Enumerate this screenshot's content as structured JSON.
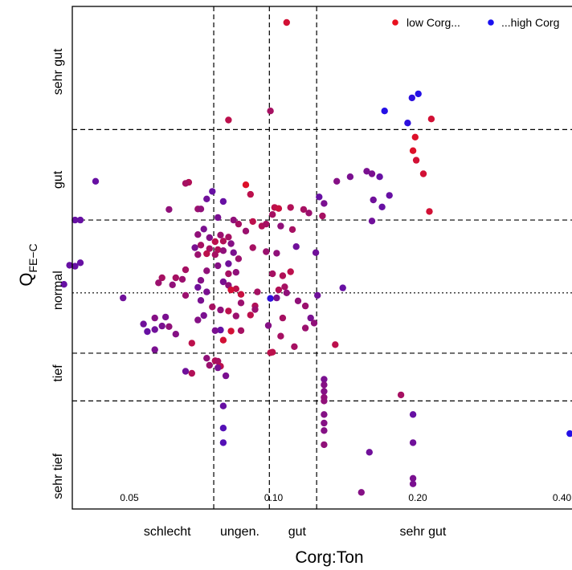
{
  "chart_data": {
    "type": "scatter",
    "xlabel": "Corg:Ton",
    "ylabel_main": "Q",
    "ylabel_sub": "FE−C",
    "x_scale": "log",
    "xlim": [
      0.038,
      0.45
    ],
    "ylim": [
      0,
      1
    ],
    "x_ticks": [
      {
        "value": 0.05,
        "label": "0.05"
      },
      {
        "value": 0.1,
        "label": "0.10"
      },
      {
        "value": 0.2,
        "label": "0.20"
      },
      {
        "value": 0.4,
        "label": "0.40"
      }
    ],
    "x_class_labels": [
      {
        "label": "schlecht",
        "value": 0.06
      },
      {
        "label": "ungen.",
        "value": 0.085
      },
      {
        "label": "gut",
        "value": 0.112
      },
      {
        "label": "sehr gut",
        "value": 0.205
      }
    ],
    "x_thresholds_dashed": [
      0.075,
      0.098,
      0.123
    ],
    "y_class_labels": [
      {
        "label": "sehr gut",
        "value": 0.87
      },
      {
        "label": "gut",
        "value": 0.655
      },
      {
        "label": "normal",
        "value": 0.435
      },
      {
        "label": "tief",
        "value": 0.27
      },
      {
        "label": "sehr tief",
        "value": 0.065
      }
    ],
    "y_thresholds_dashed": [
      0.755,
      0.575,
      0.31,
      0.215
    ],
    "y_threshold_dotted": 0.43,
    "legend": {
      "position": "top-right",
      "entries": [
        {
          "label": "low Corg...",
          "color": "#e8101e"
        },
        {
          "label": "...high Corg",
          "color": "#1a10f0"
        }
      ]
    },
    "color_gradient": [
      "#e8101e",
      "#7a1090",
      "#1a10f0"
    ],
    "points": [
      {
        "x": 0.1065,
        "y": 0.968,
        "c": 0.1
      },
      {
        "x": 0.0985,
        "y": 0.792,
        "c": 0.3
      },
      {
        "x": 0.0805,
        "y": 0.774,
        "c": 0.2
      },
      {
        "x": 0.2005,
        "y": 0.826,
        "c": 0.95
      },
      {
        "x": 0.1945,
        "y": 0.818,
        "c": 0.9
      },
      {
        "x": 0.1705,
        "y": 0.792,
        "c": 0.95
      },
      {
        "x": 0.2135,
        "y": 0.776,
        "c": 0.1
      },
      {
        "x": 0.1905,
        "y": 0.768,
        "c": 0.9
      },
      {
        "x": 0.1975,
        "y": 0.74,
        "c": 0.05
      },
      {
        "x": 0.1955,
        "y": 0.713,
        "c": 0.05
      },
      {
        "x": 0.1985,
        "y": 0.694,
        "c": 0.1
      },
      {
        "x": 0.2055,
        "y": 0.667,
        "c": 0.1
      },
      {
        "x": 0.2115,
        "y": 0.592,
        "c": 0.1
      },
      {
        "x": 0.1565,
        "y": 0.672,
        "c": 0.5
      },
      {
        "x": 0.1605,
        "y": 0.667,
        "c": 0.5
      },
      {
        "x": 0.1665,
        "y": 0.661,
        "c": 0.6
      },
      {
        "x": 0.1445,
        "y": 0.661,
        "c": 0.5
      },
      {
        "x": 0.1355,
        "y": 0.652,
        "c": 0.45
      },
      {
        "x": 0.1745,
        "y": 0.624,
        "c": 0.6
      },
      {
        "x": 0.1615,
        "y": 0.615,
        "c": 0.55
      },
      {
        "x": 0.1685,
        "y": 0.601,
        "c": 0.6
      },
      {
        "x": 0.1245,
        "y": 0.621,
        "c": 0.6
      },
      {
        "x": 0.1275,
        "y": 0.608,
        "c": 0.5
      },
      {
        "x": 0.1605,
        "y": 0.573,
        "c": 0.55
      },
      {
        "x": 0.0425,
        "y": 0.652,
        "c": 0.6
      },
      {
        "x": 0.0665,
        "y": 0.65,
        "c": 0.25
      },
      {
        "x": 0.0655,
        "y": 0.648,
        "c": 0.3
      },
      {
        "x": 0.0745,
        "y": 0.632,
        "c": 0.6
      },
      {
        "x": 0.0725,
        "y": 0.617,
        "c": 0.55
      },
      {
        "x": 0.0785,
        "y": 0.612,
        "c": 0.6
      },
      {
        "x": 0.0605,
        "y": 0.596,
        "c": 0.4
      },
      {
        "x": 0.0695,
        "y": 0.597,
        "c": 0.35
      },
      {
        "x": 0.0705,
        "y": 0.597,
        "c": 0.4
      },
      {
        "x": 0.0875,
        "y": 0.645,
        "c": 0.05
      },
      {
        "x": 0.0895,
        "y": 0.626,
        "c": 0.2
      },
      {
        "x": 0.1005,
        "y": 0.6,
        "c": 0.2
      },
      {
        "x": 0.1025,
        "y": 0.598,
        "c": 0.15
      },
      {
        "x": 0.1085,
        "y": 0.6,
        "c": 0.25
      },
      {
        "x": 0.1155,
        "y": 0.596,
        "c": 0.3
      },
      {
        "x": 0.1185,
        "y": 0.589,
        "c": 0.35
      },
      {
        "x": 0.1265,
        "y": 0.583,
        "c": 0.3
      },
      {
        "x": 0.0995,
        "y": 0.586,
        "c": 0.3
      },
      {
        "x": 0.0395,
        "y": 0.575,
        "c": 0.6
      },
      {
        "x": 0.0385,
        "y": 0.575,
        "c": 0.6
      },
      {
        "x": 0.0765,
        "y": 0.58,
        "c": 0.5
      },
      {
        "x": 0.0825,
        "y": 0.575,
        "c": 0.4
      },
      {
        "x": 0.0845,
        "y": 0.567,
        "c": 0.3
      },
      {
        "x": 0.0905,
        "y": 0.572,
        "c": 0.2
      },
      {
        "x": 0.0945,
        "y": 0.563,
        "c": 0.25
      },
      {
        "x": 0.0965,
        "y": 0.567,
        "c": 0.3
      },
      {
        "x": 0.1035,
        "y": 0.563,
        "c": 0.4
      },
      {
        "x": 0.1095,
        "y": 0.556,
        "c": 0.3
      },
      {
        "x": 0.0875,
        "y": 0.553,
        "c": 0.35
      },
      {
        "x": 0.0715,
        "y": 0.557,
        "c": 0.5
      },
      {
        "x": 0.0695,
        "y": 0.546,
        "c": 0.4
      },
      {
        "x": 0.0735,
        "y": 0.54,
        "c": 0.45
      },
      {
        "x": 0.0775,
        "y": 0.545,
        "c": 0.35
      },
      {
        "x": 0.0805,
        "y": 0.541,
        "c": 0.3
      },
      {
        "x": 0.0755,
        "y": 0.532,
        "c": 0.2
      },
      {
        "x": 0.0785,
        "y": 0.533,
        "c": 0.25
      },
      {
        "x": 0.0815,
        "y": 0.528,
        "c": 0.45
      },
      {
        "x": 0.0705,
        "y": 0.525,
        "c": 0.3
      },
      {
        "x": 0.0735,
        "y": 0.518,
        "c": 0.3
      },
      {
        "x": 0.0765,
        "y": 0.516,
        "c": 0.25
      },
      {
        "x": 0.0685,
        "y": 0.52,
        "c": 0.5
      },
      {
        "x": 0.0725,
        "y": 0.508,
        "c": 0.2
      },
      {
        "x": 0.0755,
        "y": 0.506,
        "c": 0.3
      },
      {
        "x": 0.0785,
        "y": 0.514,
        "c": 0.4
      },
      {
        "x": 0.0695,
        "y": 0.506,
        "c": 0.35
      },
      {
        "x": 0.0825,
        "y": 0.51,
        "c": 0.5
      },
      {
        "x": 0.0845,
        "y": 0.498,
        "c": 0.35
      },
      {
        "x": 0.0905,
        "y": 0.52,
        "c": 0.3
      },
      {
        "x": 0.0965,
        "y": 0.512,
        "c": 0.35
      },
      {
        "x": 0.1015,
        "y": 0.509,
        "c": 0.4
      },
      {
        "x": 0.1115,
        "y": 0.522,
        "c": 0.55
      },
      {
        "x": 0.1225,
        "y": 0.51,
        "c": 0.55
      },
      {
        "x": 0.0805,
        "y": 0.488,
        "c": 0.55
      },
      {
        "x": 0.0765,
        "y": 0.484,
        "c": 0.45
      },
      {
        "x": 0.0655,
        "y": 0.476,
        "c": 0.3
      },
      {
        "x": 0.0725,
        "y": 0.474,
        "c": 0.4
      },
      {
        "x": 0.0805,
        "y": 0.468,
        "c": 0.3
      },
      {
        "x": 0.0835,
        "y": 0.471,
        "c": 0.4
      },
      {
        "x": 0.0995,
        "y": 0.468,
        "c": 0.3
      },
      {
        "x": 0.1045,
        "y": 0.464,
        "c": 0.25
      },
      {
        "x": 0.1085,
        "y": 0.472,
        "c": 0.2
      },
      {
        "x": 0.0625,
        "y": 0.46,
        "c": 0.3
      },
      {
        "x": 0.0645,
        "y": 0.457,
        "c": 0.35
      },
      {
        "x": 0.0705,
        "y": 0.455,
        "c": 0.45
      },
      {
        "x": 0.0785,
        "y": 0.452,
        "c": 0.5
      },
      {
        "x": 0.0615,
        "y": 0.446,
        "c": 0.4
      },
      {
        "x": 0.0585,
        "y": 0.46,
        "c": 0.3
      },
      {
        "x": 0.0395,
        "y": 0.49,
        "c": 0.6
      },
      {
        "x": 0.0385,
        "y": 0.483,
        "c": 0.6
      },
      {
        "x": 0.0375,
        "y": 0.485,
        "c": 0.6
      },
      {
        "x": 0.0365,
        "y": 0.447,
        "c": 0.6
      },
      {
        "x": 0.0575,
        "y": 0.45,
        "c": 0.35
      },
      {
        "x": 0.0805,
        "y": 0.445,
        "c": 0.4
      },
      {
        "x": 0.0835,
        "y": 0.438,
        "c": 0.2
      },
      {
        "x": 0.0815,
        "y": 0.436,
        "c": 0.1
      },
      {
        "x": 0.0855,
        "y": 0.427,
        "c": 0.15
      },
      {
        "x": 0.0925,
        "y": 0.432,
        "c": 0.3
      },
      {
        "x": 0.1025,
        "y": 0.436,
        "c": 0.25
      },
      {
        "x": 0.1055,
        "y": 0.442,
        "c": 0.3
      },
      {
        "x": 0.1065,
        "y": 0.43,
        "c": 0.4
      },
      {
        "x": 0.1395,
        "y": 0.44,
        "c": 0.6
      },
      {
        "x": 0.0695,
        "y": 0.441,
        "c": 0.55
      },
      {
        "x": 0.0725,
        "y": 0.432,
        "c": 0.5
      },
      {
        "x": 0.0655,
        "y": 0.425,
        "c": 0.35
      },
      {
        "x": 0.0705,
        "y": 0.415,
        "c": 0.5
      },
      {
        "x": 0.0985,
        "y": 0.419,
        "c": 0.9
      },
      {
        "x": 0.1015,
        "y": 0.42,
        "c": 0.5
      },
      {
        "x": 0.1235,
        "y": 0.425,
        "c": 0.55
      },
      {
        "x": 0.0855,
        "y": 0.41,
        "c": 0.35
      },
      {
        "x": 0.0915,
        "y": 0.404,
        "c": 0.25
      },
      {
        "x": 0.0485,
        "y": 0.42,
        "c": 0.55
      },
      {
        "x": 0.0745,
        "y": 0.402,
        "c": 0.3
      },
      {
        "x": 0.0775,
        "y": 0.396,
        "c": 0.4
      },
      {
        "x": 0.0805,
        "y": 0.394,
        "c": 0.2
      },
      {
        "x": 0.0835,
        "y": 0.384,
        "c": 0.35
      },
      {
        "x": 0.0915,
        "y": 0.397,
        "c": 0.35
      },
      {
        "x": 0.1125,
        "y": 0.414,
        "c": 0.4
      },
      {
        "x": 0.1165,
        "y": 0.404,
        "c": 0.35
      },
      {
        "x": 0.0715,
        "y": 0.385,
        "c": 0.5
      },
      {
        "x": 0.0695,
        "y": 0.376,
        "c": 0.45
      },
      {
        "x": 0.0895,
        "y": 0.386,
        "c": 0.2
      },
      {
        "x": 0.0565,
        "y": 0.38,
        "c": 0.45
      },
      {
        "x": 0.0595,
        "y": 0.382,
        "c": 0.5
      },
      {
        "x": 0.0535,
        "y": 0.368,
        "c": 0.55
      },
      {
        "x": 0.0585,
        "y": 0.364,
        "c": 0.5
      },
      {
        "x": 0.0605,
        "y": 0.363,
        "c": 0.4
      },
      {
        "x": 0.0545,
        "y": 0.353,
        "c": 0.6
      },
      {
        "x": 0.0565,
        "y": 0.357,
        "c": 0.55
      },
      {
        "x": 0.0625,
        "y": 0.348,
        "c": 0.45
      },
      {
        "x": 0.0775,
        "y": 0.356,
        "c": 0.6
      },
      {
        "x": 0.0815,
        "y": 0.354,
        "c": 0.1
      },
      {
        "x": 0.0855,
        "y": 0.355,
        "c": 0.3
      },
      {
        "x": 0.0755,
        "y": 0.355,
        "c": 0.5
      },
      {
        "x": 0.0975,
        "y": 0.365,
        "c": 0.45
      },
      {
        "x": 0.1045,
        "y": 0.38,
        "c": 0.3
      },
      {
        "x": 0.1195,
        "y": 0.38,
        "c": 0.5
      },
      {
        "x": 0.1215,
        "y": 0.37,
        "c": 0.4
      },
      {
        "x": 0.1165,
        "y": 0.36,
        "c": 0.35
      },
      {
        "x": 0.0785,
        "y": 0.336,
        "c": 0.1
      },
      {
        "x": 0.1035,
        "y": 0.344,
        "c": 0.3
      },
      {
        "x": 0.0675,
        "y": 0.33,
        "c": 0.2
      },
      {
        "x": 0.0565,
        "y": 0.317,
        "c": 0.5
      },
      {
        "x": 0.1105,
        "y": 0.323,
        "c": 0.3
      },
      {
        "x": 0.1345,
        "y": 0.327,
        "c": 0.2
      },
      {
        "x": 0.0985,
        "y": 0.311,
        "c": 0.2
      },
      {
        "x": 0.0995,
        "y": 0.312,
        "c": 0.2
      },
      {
        "x": 0.0725,
        "y": 0.3,
        "c": 0.4
      },
      {
        "x": 0.0755,
        "y": 0.295,
        "c": 0.25
      },
      {
        "x": 0.0765,
        "y": 0.294,
        "c": 0.3
      },
      {
        "x": 0.0735,
        "y": 0.286,
        "c": 0.35
      },
      {
        "x": 0.0775,
        "y": 0.284,
        "c": 0.2
      },
      {
        "x": 0.0765,
        "y": 0.281,
        "c": 0.5
      },
      {
        "x": 0.0655,
        "y": 0.274,
        "c": 0.55
      },
      {
        "x": 0.0675,
        "y": 0.27,
        "c": 0.25
      },
      {
        "x": 0.0795,
        "y": 0.265,
        "c": 0.5
      },
      {
        "x": 0.1275,
        "y": 0.258,
        "c": 0.5
      },
      {
        "x": 0.1275,
        "y": 0.247,
        "c": 0.45
      },
      {
        "x": 0.1275,
        "y": 0.234,
        "c": 0.45
      },
      {
        "x": 0.1275,
        "y": 0.222,
        "c": 0.4
      },
      {
        "x": 0.1275,
        "y": 0.215,
        "c": 0.4
      },
      {
        "x": 0.1845,
        "y": 0.227,
        "c": 0.3
      },
      {
        "x": 0.0785,
        "y": 0.205,
        "c": 0.6
      },
      {
        "x": 0.1275,
        "y": 0.188,
        "c": 0.45
      },
      {
        "x": 0.1955,
        "y": 0.188,
        "c": 0.6
      },
      {
        "x": 0.1275,
        "y": 0.171,
        "c": 0.45
      },
      {
        "x": 0.0785,
        "y": 0.161,
        "c": 0.7
      },
      {
        "x": 0.1275,
        "y": 0.156,
        "c": 0.45
      },
      {
        "x": 0.0785,
        "y": 0.132,
        "c": 0.7
      },
      {
        "x": 0.1275,
        "y": 0.128,
        "c": 0.4
      },
      {
        "x": 0.1955,
        "y": 0.132,
        "c": 0.55
      },
      {
        "x": 0.1585,
        "y": 0.113,
        "c": 0.55
      },
      {
        "x": 0.4155,
        "y": 0.15,
        "c": 0.95
      },
      {
        "x": 0.1955,
        "y": 0.061,
        "c": 0.5
      },
      {
        "x": 0.1955,
        "y": 0.05,
        "c": 0.5
      },
      {
        "x": 0.1525,
        "y": 0.033,
        "c": 0.45
      }
    ]
  }
}
